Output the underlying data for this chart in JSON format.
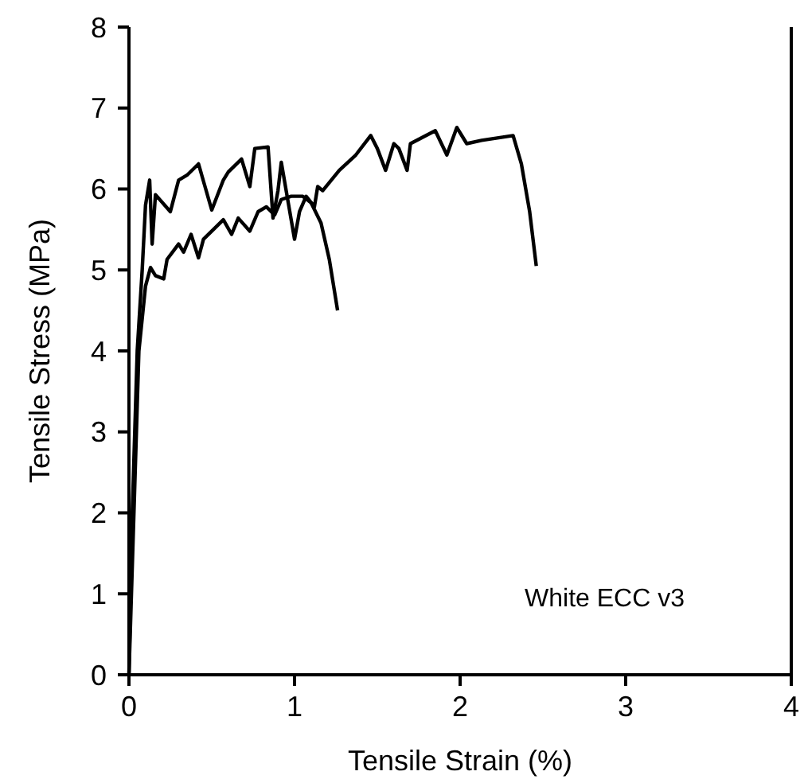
{
  "chart_data": {
    "type": "line",
    "xlabel": "Tensile Strain (%)",
    "ylabel": "Tensile Stress (MPa)",
    "xlim": [
      0,
      4
    ],
    "ylim": [
      0,
      8
    ],
    "xticks": [
      0,
      1,
      2,
      3,
      4
    ],
    "yticks": [
      0,
      1,
      2,
      3,
      4,
      5,
      6,
      7,
      8
    ],
    "grid": false,
    "line_style": "solid",
    "annotations": [
      "White ECC v3"
    ],
    "series": [
      {
        "color": "#000000",
        "x": [
          0,
          0.02,
          0.05,
          0.08,
          0.1,
          0.125,
          0.14,
          0.16,
          0.25,
          0.3,
          0.35,
          0.42,
          0.5,
          0.57,
          0.6,
          0.68,
          0.73,
          0.76,
          0.84,
          0.87,
          0.9,
          0.92,
          1.0,
          1.03,
          1.07,
          1.12,
          1.14,
          1.17,
          1.27,
          1.37,
          1.46,
          1.5,
          1.55,
          1.6,
          1.63,
          1.68,
          1.7,
          1.85,
          1.92,
          1.98,
          2.04,
          2.13,
          2.32,
          2.37,
          2.42,
          2.46
        ],
        "values": [
          0,
          2,
          4,
          5,
          5.8,
          6.11,
          5.32,
          5.93,
          5.72,
          6.11,
          6.17,
          6.31,
          5.74,
          6.11,
          6.21,
          6.37,
          6.03,
          6.5,
          6.52,
          5.64,
          5.98,
          6.33,
          5.38,
          5.72,
          5.91,
          5.78,
          6.03,
          5.98,
          6.23,
          6.42,
          6.66,
          6.5,
          6.23,
          6.56,
          6.5,
          6.23,
          6.56,
          6.72,
          6.42,
          6.76,
          6.56,
          6.6,
          6.66,
          6.31,
          5.72,
          5.05
        ]
      },
      {
        "color": "#000000",
        "x": [
          0,
          0.03,
          0.06,
          0.1,
          0.13,
          0.16,
          0.21,
          0.23,
          0.3,
          0.33,
          0.375,
          0.42,
          0.45,
          0.52,
          0.57,
          0.62,
          0.66,
          0.73,
          0.78,
          0.83,
          0.88,
          0.92,
          0.98,
          1.05,
          1.1,
          1.16,
          1.21,
          1.26
        ],
        "values": [
          0,
          2,
          4,
          4.8,
          5.03,
          4.93,
          4.89,
          5.13,
          5.32,
          5.22,
          5.44,
          5.15,
          5.38,
          5.52,
          5.62,
          5.44,
          5.64,
          5.48,
          5.72,
          5.78,
          5.68,
          5.87,
          5.91,
          5.91,
          5.83,
          5.58,
          5.13,
          4.5
        ]
      }
    ]
  }
}
